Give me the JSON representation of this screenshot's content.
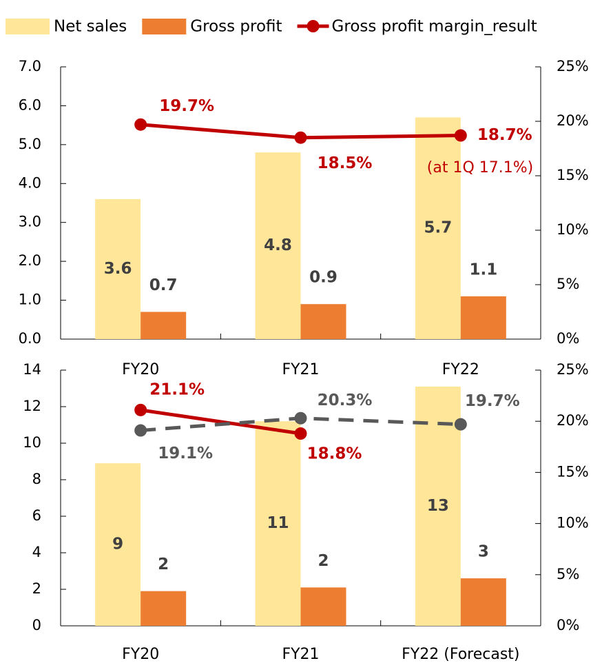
{
  "chart_data": [
    {
      "type": "bar",
      "categories": [
        "FY20",
        "FY21",
        "FY22"
      ],
      "series": [
        {
          "name": "Net sales",
          "color": "#FFE699",
          "values": [
            3.6,
            4.8,
            5.7
          ]
        },
        {
          "name": "Gross profit",
          "color": "#ED7D31",
          "values": [
            0.7,
            0.9,
            1.1
          ]
        },
        {
          "name": "Gross profit margin_result",
          "type": "line",
          "axis": "y2",
          "color": "#C00000",
          "values": [
            19.7,
            18.5,
            18.7
          ],
          "value_labels": [
            "19.7%",
            "18.5%",
            "18.7%"
          ]
        }
      ],
      "annotations": [
        "(at 1Q 17.1%)"
      ],
      "ylim": [
        0,
        7
      ],
      "yticks": [
        {
          "value": 0,
          "label": "0.0"
        },
        {
          "value": 1,
          "label": "1.0"
        },
        {
          "value": 2,
          "label": "2.0"
        },
        {
          "value": 3,
          "label": "3.0"
        },
        {
          "value": 4,
          "label": "4.0"
        },
        {
          "value": 5,
          "label": "5.0"
        },
        {
          "value": 6,
          "label": "6.0"
        },
        {
          "value": 7,
          "label": "7.0"
        }
      ],
      "y2lim": [
        0,
        25
      ],
      "y2ticks": [
        {
          "value": 0,
          "label": "0%"
        },
        {
          "value": 5,
          "label": "5%"
        },
        {
          "value": 10,
          "label": "10%"
        },
        {
          "value": 15,
          "label": "15%"
        },
        {
          "value": 20,
          "label": "20%"
        },
        {
          "value": 25,
          "label": "25%"
        }
      ],
      "legend": "top"
    },
    {
      "type": "bar",
      "categories": [
        "FY20",
        "FY21",
        "FY22 (Forecast)"
      ],
      "series": [
        {
          "color": "#FFE699",
          "values": [
            8.9,
            11.2,
            13.1
          ],
          "value_labels": [
            "9",
            "11",
            "13"
          ]
        },
        {
          "color": "#ED7D31",
          "values": [
            1.9,
            2.1,
            2.6
          ],
          "value_labels": [
            "2",
            "2",
            "3"
          ]
        },
        {
          "type": "line",
          "axis": "y2",
          "color": "#C00000",
          "values": [
            21.1,
            18.8,
            null
          ],
          "value_labels": [
            "21.1%",
            "18.8%",
            null
          ]
        },
        {
          "type": "line",
          "axis": "y2",
          "color": "#595959",
          "dashed": true,
          "values": [
            19.1,
            20.3,
            19.7
          ],
          "value_labels": [
            "19.1%",
            "20.3%",
            "19.7%"
          ]
        }
      ],
      "ylim": [
        0,
        14
      ],
      "yticks": [
        0,
        2,
        4,
        6,
        8,
        10,
        12,
        14
      ],
      "y2lim": [
        0,
        25
      ],
      "y2ticks": [
        {
          "value": 0,
          "label": "0%"
        },
        {
          "value": 5,
          "label": "5%"
        },
        {
          "value": 10,
          "label": "10%"
        },
        {
          "value": 15,
          "label": "15%"
        },
        {
          "value": 20,
          "label": "20%"
        },
        {
          "value": 25,
          "label": "25%"
        }
      ]
    }
  ]
}
